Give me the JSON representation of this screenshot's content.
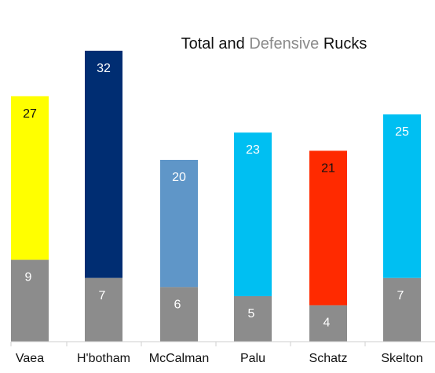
{
  "chart_data": {
    "type": "bar",
    "stacked": true,
    "title_parts": [
      {
        "text": "Total and ",
        "color": "#111111"
      },
      {
        "text": "Defensive",
        "color": "#8a8a8a"
      },
      {
        "text": " Rucks",
        "color": "#111111"
      }
    ],
    "categories": [
      "Vaea",
      "H'botham",
      "McCalman",
      "Palu",
      "Schatz",
      "Skelton"
    ],
    "series": [
      {
        "values": [
          9,
          7,
          6,
          5,
          4,
          7
        ],
        "colors": [
          "#8c8c8c",
          "#8c8c8c",
          "#8c8c8c",
          "#8c8c8c",
          "#8c8c8c",
          "#8c8c8c"
        ],
        "label_colors": [
          "#ffffff",
          "#ffffff",
          "#ffffff",
          "#ffffff",
          "#ffffff",
          "#ffffff"
        ]
      }
    ],
    "totals": [
      27,
      32,
      20,
      23,
      21,
      25
    ],
    "total_colors": [
      "#ffff00",
      "#002d72",
      "#5f96c8",
      "#00bff2",
      "#ff2a00",
      "#00bff2"
    ],
    "total_label_colors": [
      "#111111",
      "#ffffff",
      "#ffffff",
      "#ffffff",
      "#111111",
      "#ffffff"
    ],
    "ylim": [
      0,
      34
    ],
    "grid": false,
    "legend": "none"
  }
}
